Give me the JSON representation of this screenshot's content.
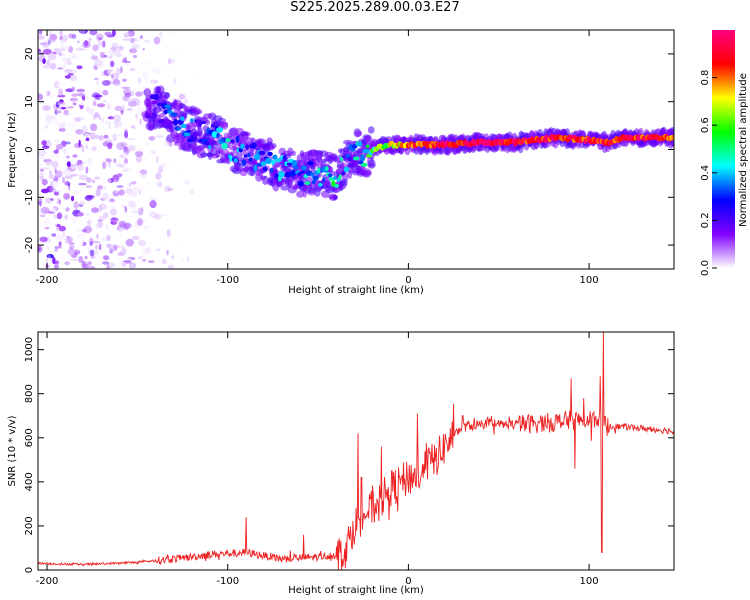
{
  "title": "S225.2025.289.00.03.E27",
  "chart_data": [
    {
      "type": "heatmap",
      "name": "spectrogram",
      "xlabel": "Height of straight line (km)",
      "ylabel": "Frequency (Hz)",
      "xlim": [
        -205,
        147
      ],
      "ylim": [
        -25,
        25
      ],
      "xticks": [
        -200,
        -100,
        0,
        100
      ],
      "xtick_labels": [
        "-200",
        "-100",
        "0",
        "100"
      ],
      "yticks": [
        -20,
        -10,
        0,
        10,
        20
      ],
      "ytick_labels": [
        "-20",
        "-10",
        "0",
        "10",
        "20"
      ],
      "colorbar": {
        "label": "Normalized spectral amplitude",
        "range": [
          0,
          1
        ],
        "ticks": [
          0.0,
          0.2,
          0.4,
          0.6,
          0.8
        ],
        "tick_labels": [
          "0.0",
          "0.2",
          "0.4",
          "0.6",
          "0.8"
        ],
        "colors": [
          "#ffffff",
          "#8000ff",
          "#0000ff",
          "#00ffff",
          "#00ff00",
          "#ffff00",
          "#ff0000",
          "#ff0080"
        ]
      },
      "ridge": {
        "x": [
          -140,
          -130,
          -120,
          -110,
          -100,
          -90,
          -80,
          -70,
          -60,
          -50,
          -40,
          -35,
          -30,
          -25,
          -20,
          -10,
          0,
          10,
          20,
          40,
          60,
          80,
          100,
          110,
          120,
          147
        ],
        "y": [
          9,
          6,
          4,
          3,
          1,
          -1,
          -2,
          -4,
          -5,
          -5,
          -6,
          -3,
          -1,
          -1,
          0,
          1,
          1,
          1,
          1,
          1.5,
          1.5,
          2.5,
          2,
          1.5,
          2.5,
          2.5
        ],
        "amplitude": [
          0.2,
          0.3,
          0.25,
          0.3,
          0.35,
          0.3,
          0.3,
          0.35,
          0.35,
          0.4,
          0.45,
          0.3,
          0.35,
          0.45,
          0.55,
          0.65,
          0.8,
          0.85,
          0.9,
          0.95,
          0.9,
          0.9,
          0.85,
          0.85,
          0.9,
          0.85
        ]
      },
      "noise_region": {
        "x_range": [
          -205,
          -140
        ],
        "y_range": [
          -25,
          25
        ],
        "amplitude_range": [
          0.0,
          0.2
        ]
      }
    },
    {
      "type": "line",
      "name": "snr",
      "xlabel": "Height of straight line (km)",
      "ylabel": "SNR (10 * v/v)",
      "xlim": [
        -205,
        147
      ],
      "ylim": [
        0,
        1080
      ],
      "xticks": [
        -200,
        -100,
        0,
        100
      ],
      "xtick_labels": [
        "-200",
        "-100",
        "0",
        "100"
      ],
      "yticks": [
        0,
        200,
        400,
        600,
        800,
        1000
      ],
      "ytick_labels": [
        "0",
        "200",
        "400",
        "600",
        "800",
        "1000"
      ],
      "color": "#ee2222",
      "envelope": {
        "x": [
          -205,
          -180,
          -150,
          -130,
          -110,
          -90,
          -70,
          -50,
          -40,
          -35,
          -30,
          -25,
          -20,
          -15,
          -10,
          -5,
          0,
          5,
          10,
          15,
          20,
          25,
          30,
          40,
          60,
          80,
          90,
          100,
          105,
          110,
          120,
          147
        ],
        "y": [
          30,
          25,
          35,
          50,
          70,
          80,
          50,
          60,
          70,
          90,
          200,
          250,
          280,
          320,
          370,
          390,
          420,
          430,
          480,
          500,
          560,
          610,
          650,
          660,
          660,
          670,
          680,
          680,
          690,
          650,
          650,
          630
        ]
      },
      "spikes": {
        "x": [
          -90,
          -58,
          -28,
          -26,
          -15,
          5,
          30,
          90,
          92,
          97,
          106,
          107,
          108
        ],
        "y": [
          240,
          160,
          620,
          420,
          560,
          710,
          700,
          870,
          460,
          780,
          880,
          80,
          1080
        ]
      }
    }
  ]
}
